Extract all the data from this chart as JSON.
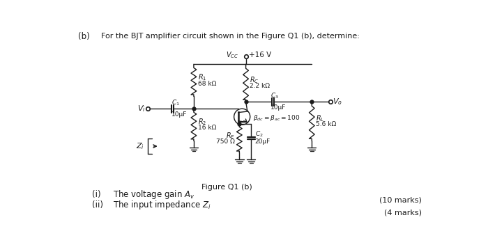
{
  "bg_color": "#ffffff",
  "line_color": "#1a1a1a",
  "header_b": "(b)",
  "header_text": "For the BJT amplifier circuit shown in the Figure Q1 (b), determine:",
  "vcc_text": "$V_{CC}$",
  "vcc_val": "+16 V",
  "R1_top": "$R_1$",
  "R1_bot": "68 kΩ",
  "R2_top": "$R_2$",
  "R2_bot": "16 kΩ",
  "RC_top": "$R_C$",
  "RC_bot": "2.2 kΩ",
  "RE_top": "$R_E$",
  "RE_bot": "750 Ω",
  "RL_top": "$R_L$",
  "RL_bot": "5.6 kΩ",
  "C1_top": "$C_1$",
  "C1_bot": "10μF",
  "C2_top": "$C_2$",
  "C2_bot": "20μF",
  "C3_top": "$C_3$",
  "C3_bot": "10μF",
  "bjt_label": "$\\beta_{dc}=\\beta_{ac}=100$",
  "Vi_label": "$V_i$",
  "Vo_label": "$V_o$",
  "Zi_label": "$Z_i$",
  "fig_label": "Figure Q1 (b)",
  "q_i_num": "(i)",
  "q_i_text": "The voltage gain $A_v$",
  "q_i_marks": "(10 marks)",
  "q_ii_num": "(ii)",
  "q_ii_text": "The input impedance $Z_i$",
  "q_ii_marks": "(4 marks)"
}
